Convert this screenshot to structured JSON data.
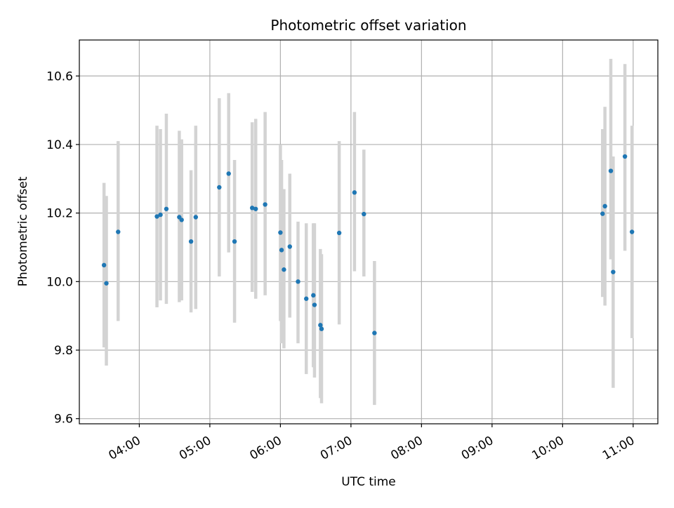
{
  "chart_data": {
    "type": "scatter",
    "title": "Photometric offset variation",
    "xlabel": "UTC time",
    "ylabel": "Photometric offset",
    "xlim": [
      "03:09",
      "11:21"
    ],
    "ylim": [
      9.585,
      10.705
    ],
    "x_ticks": [
      "04:00",
      "05:00",
      "06:00",
      "07:00",
      "08:00",
      "09:00",
      "10:00",
      "11:00"
    ],
    "y_ticks": [
      9.6,
      9.8,
      10.0,
      10.2,
      10.4,
      10.6
    ],
    "grid": true,
    "colors": {
      "point": "#1f77b4",
      "errorbar": "#d3d3d3",
      "grid": "#b0b0b0"
    },
    "series": [
      {
        "x": [
          "03:30",
          "03:32",
          "03:42",
          "04:15",
          "04:18",
          "04:23",
          "04:34",
          "04:36",
          "04:44",
          "04:48",
          "05:08",
          "05:16",
          "05:21",
          "05:36",
          "05:39",
          "05:47",
          "06:00",
          "06:01",
          "06:03",
          "06:08",
          "06:15",
          "06:22",
          "06:28",
          "06:29",
          "06:34",
          "06:35",
          "06:50",
          "07:03",
          "07:11",
          "07:20",
          "10:34",
          "10:36",
          "10:41",
          "10:43",
          "10:53",
          "10:59"
        ],
        "y": [
          10.048,
          9.995,
          10.145,
          10.19,
          10.195,
          10.212,
          10.188,
          10.18,
          10.117,
          10.188,
          10.275,
          10.315,
          10.117,
          10.215,
          10.212,
          10.225,
          10.143,
          10.092,
          10.035,
          10.102,
          10.0,
          9.95,
          9.96,
          9.932,
          9.873,
          9.862,
          10.142,
          10.26,
          10.197,
          9.85,
          10.198,
          10.22,
          10.323,
          10.028,
          10.365,
          10.145
        ],
        "err_low": [
          9.808,
          9.755,
          9.885,
          9.925,
          9.945,
          9.935,
          9.94,
          9.945,
          9.91,
          9.92,
          10.015,
          10.085,
          9.88,
          9.97,
          9.95,
          9.96,
          9.885,
          9.82,
          9.805,
          9.895,
          9.82,
          9.73,
          9.75,
          9.72,
          9.66,
          9.645,
          9.875,
          10.03,
          10.015,
          9.64,
          9.955,
          9.93,
          10.065,
          9.69,
          10.09,
          9.835
        ],
        "err_high": [
          10.288,
          10.25,
          10.41,
          10.455,
          10.445,
          10.49,
          10.44,
          10.415,
          10.325,
          10.455,
          10.535,
          10.55,
          10.355,
          10.465,
          10.475,
          10.495,
          10.4,
          10.355,
          10.27,
          10.315,
          10.175,
          10.17,
          10.17,
          10.17,
          10.095,
          10.08,
          10.41,
          10.495,
          10.385,
          10.06,
          10.445,
          10.51,
          10.65,
          10.365,
          10.635,
          10.455
        ]
      }
    ]
  }
}
